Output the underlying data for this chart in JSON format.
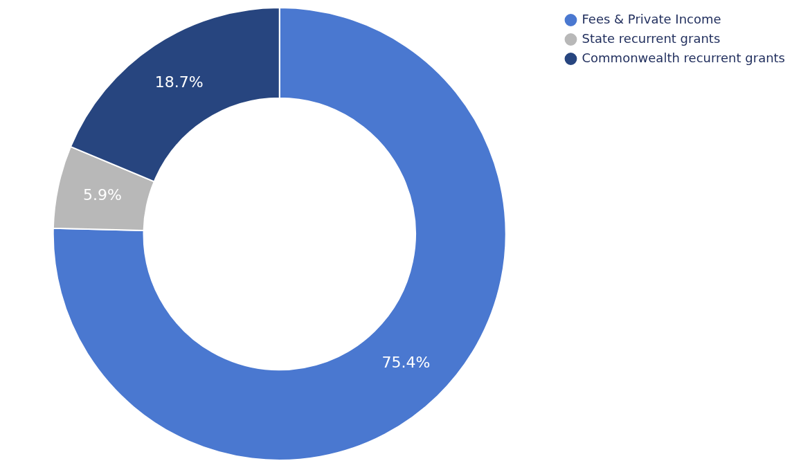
{
  "chart_data": {
    "type": "donut",
    "categories": [
      "Fees & Private Income",
      "State recurrent grants",
      "Commonwealth recurrent grants"
    ],
    "values": [
      75.4,
      5.9,
      18.7
    ],
    "colors": [
      "#4a78d0",
      "#b8b8b8",
      "#27457f"
    ],
    "value_labels": [
      "75.4%",
      "5.9%",
      "18.7%"
    ],
    "legend": "top right"
  }
}
